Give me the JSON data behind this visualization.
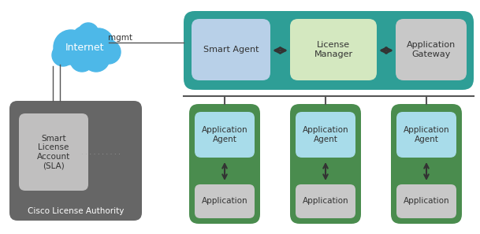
{
  "background_color": "#ffffff",
  "cloud_color": "#4db8e8",
  "internet_label": "Internet",
  "mgmt_label": "mgmt",
  "sla_box_color": "#666666",
  "sla_inner_color": "#c0bfbf",
  "sla_label": "Smart\nLicense\nAccount\n(SLA)",
  "sla_bottom_label": "Cisco License Authority",
  "dots_label": ". . . . . . . . . .",
  "teal_bar_color": "#2e9e96",
  "smart_agent_box_color": "#b8d0e8",
  "smart_agent_label": "Smart Agent",
  "license_manager_box_color": "#d4e8c0",
  "license_manager_label": "License\nManager",
  "app_gateway_box_color": "#c8c8c8",
  "app_gateway_label": "Application\nGateway",
  "green_container_color": "#4a8c4e",
  "app_agent_box_color": "#a8dcea",
  "app_agent_label": "Application\nAgent",
  "application_box_color": "#c8c8c8",
  "application_label": "Application",
  "arrow_color": "#333333",
  "line_color": "#555555",
  "text_dark": "#333333",
  "text_white": "#ffffff"
}
